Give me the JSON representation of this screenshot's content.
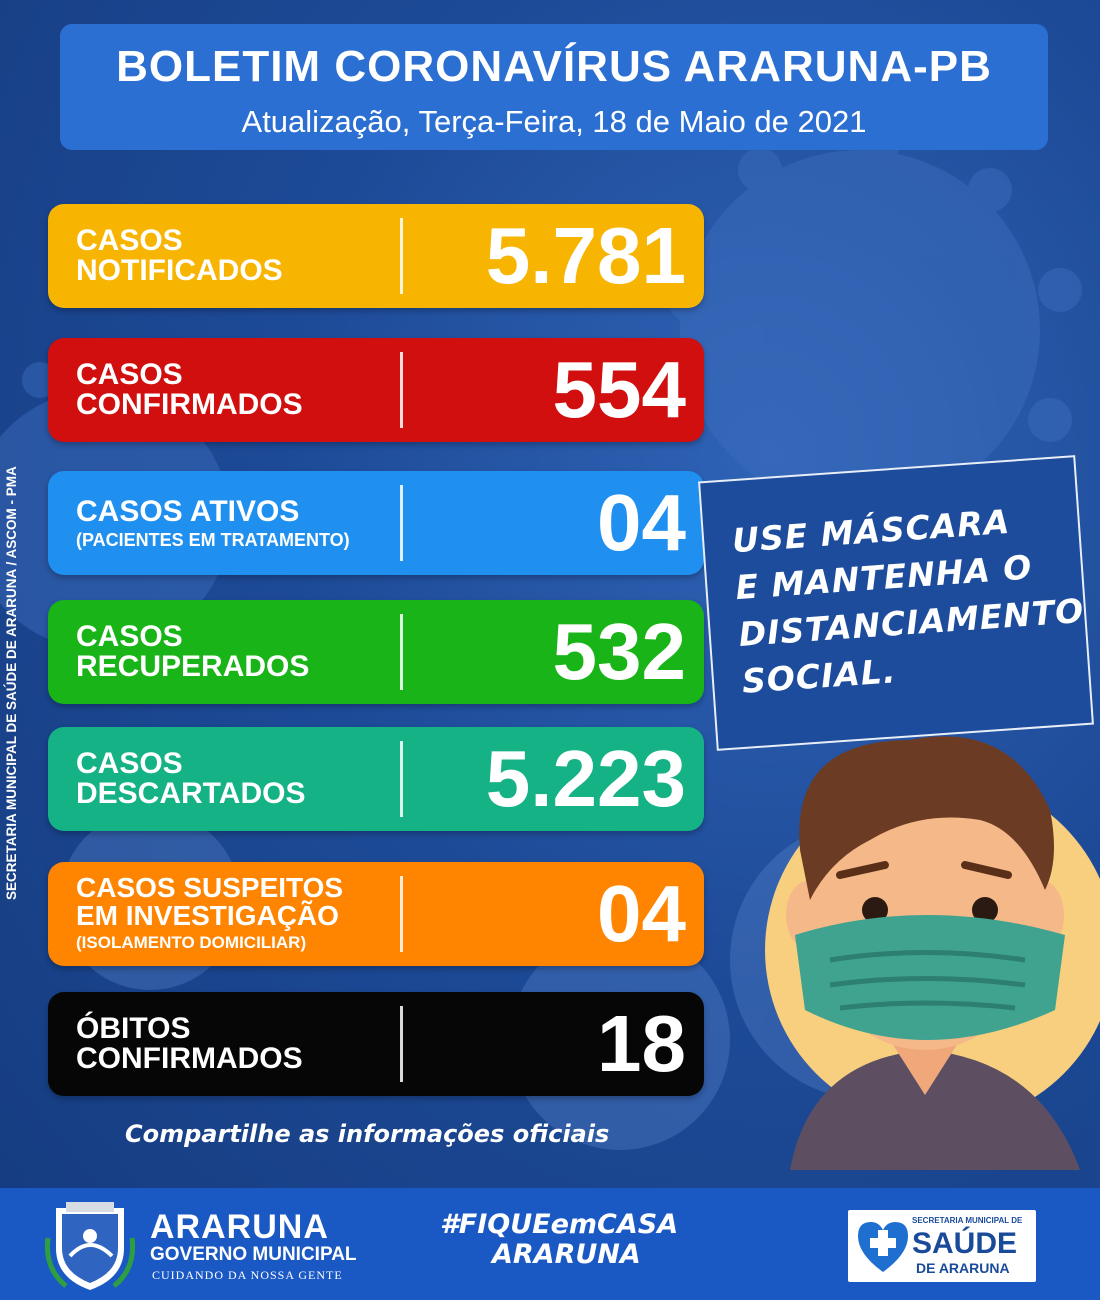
{
  "header": {
    "title": "BOLETIM CORONAVÍRUS ARARUNA-PB",
    "subtitle": "Atualização, Terça-Feira, 18 de Maio de 2021"
  },
  "side_credit": "SECRETARIA MUNICIPAL DE SAÚDE DE ARARUNA / ASCOM - PMA",
  "stats": [
    {
      "line1": "CASOS",
      "line2": "NOTIFICADOS",
      "note": "",
      "value": "5.781",
      "color": "#f7b400"
    },
    {
      "line1": "CASOS",
      "line2": "CONFIRMADOS",
      "note": "",
      "value": "554",
      "color": "#d10f0f"
    },
    {
      "line1": "CASOS ATIVOS",
      "line2": "",
      "note": "(PACIENTES EM TRATAMENTO)",
      "value": "04",
      "color": "#1f8ff0"
    },
    {
      "line1": "CASOS",
      "line2": "RECUPERADOS",
      "note": "",
      "value": "532",
      "color": "#19b418"
    },
    {
      "line1": "CASOS",
      "line2": "DESCARTADOS",
      "note": "",
      "value": "5.223",
      "color": "#14b285"
    },
    {
      "line1": "CASOS SUSPEITOS",
      "line2": "EM INVESTIGAÇÃO",
      "note": "(ISOLAMENTO DOMICILIAR)",
      "value": "04",
      "color": "#ff8400"
    },
    {
      "line1": "ÓBITOS",
      "line2": "CONFIRMADOS",
      "note": "",
      "value": "18",
      "color": "#060606"
    }
  ],
  "bubble": {
    "line1": "USE MÁSCARA",
    "line2": "E MANTENHA O",
    "line3": "DISTANCIAMENTO",
    "line4": "SOCIAL."
  },
  "share_text": "Compartilhe as informações oficiais",
  "footer": {
    "gov_name": "ARARUNA",
    "gov_line2": "GOVERNO MUNICIPAL",
    "gov_line3": "CUIDANDO DA NOSSA GENTE",
    "hashtag_line1": "#FIQUEemCASA",
    "hashtag_line2": "ARARUNA",
    "saude_top": "SECRETARIA MUNICIPAL DE",
    "saude_main": "SAÚDE",
    "saude_bottom": "DE ARARUNA"
  },
  "icons": [
    "virus-background-icon",
    "crest-icon",
    "health-heart-icon",
    "boy-with-mask-illustration"
  ]
}
